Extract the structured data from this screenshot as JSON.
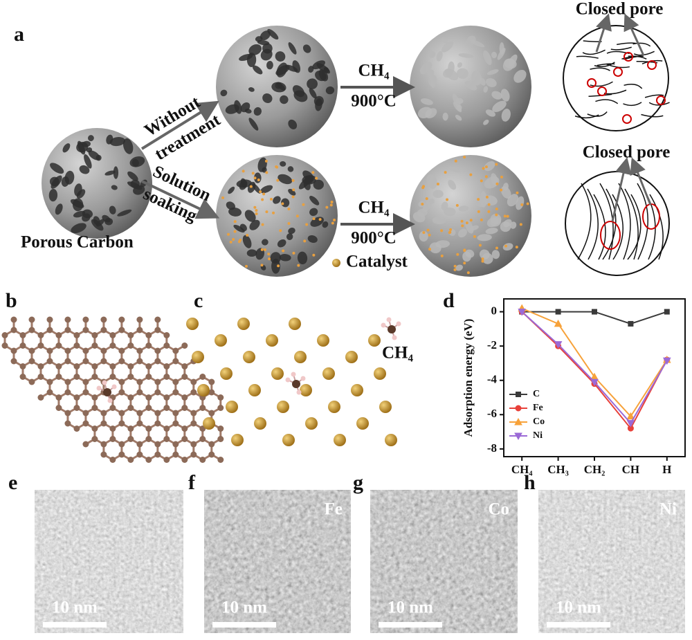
{
  "panel_labels": [
    "a",
    "b",
    "c",
    "d",
    "e",
    "f",
    "g",
    "h"
  ],
  "a": {
    "porous_carbon": "Porous Carbon",
    "branch_top": [
      "Without",
      "treatment"
    ],
    "branch_bottom": [
      "Solution",
      "soaking"
    ],
    "arrow_top": {
      "gas": "CH₄",
      "temperature": "900°C"
    },
    "arrow_bottom": {
      "gas": "CH₄",
      "temperature": "900°C"
    },
    "catalyst": "Catalyst",
    "closed_pore_top": "Closed pore",
    "closed_pore_bottom": "Closed pore"
  },
  "c": {
    "molecule": "CH₄"
  },
  "chart_data": {
    "type": "line",
    "y_label": "Adsorption  energy (eV)",
    "categories": [
      "CH₄",
      "CH₃",
      "CH₂",
      "CH",
      "H"
    ],
    "series": [
      {
        "name": "C",
        "color": "#3a3a3a",
        "marker": "square",
        "values": [
          0,
          0,
          0,
          -0.7,
          0
        ]
      },
      {
        "name": "Fe",
        "color": "#e8413a",
        "marker": "circle",
        "values": [
          0,
          -2.0,
          -4.2,
          -6.8,
          -2.8
        ]
      },
      {
        "name": "Co",
        "color": "#f7a23a",
        "marker": "triangle-up",
        "values": [
          0.2,
          -0.7,
          -3.8,
          -6.1,
          -2.8
        ]
      },
      {
        "name": "Ni",
        "color": "#9b6ad6",
        "marker": "triangle-down",
        "values": [
          0,
          -1.9,
          -4.1,
          -6.5,
          -2.85
        ]
      }
    ],
    "ylim": [
      -8.45,
      0.75
    ],
    "yticks": [
      0,
      -2,
      -4,
      -6,
      -8
    ],
    "legend": "lower left"
  },
  "tem": [
    {
      "scale_bar": "10 nm"
    },
    {
      "metal": "Fe",
      "scale_bar": "10 nm"
    },
    {
      "metal": "Co",
      "scale_bar": "10 nm"
    },
    {
      "metal": "Ni",
      "scale_bar": "10 nm"
    }
  ]
}
